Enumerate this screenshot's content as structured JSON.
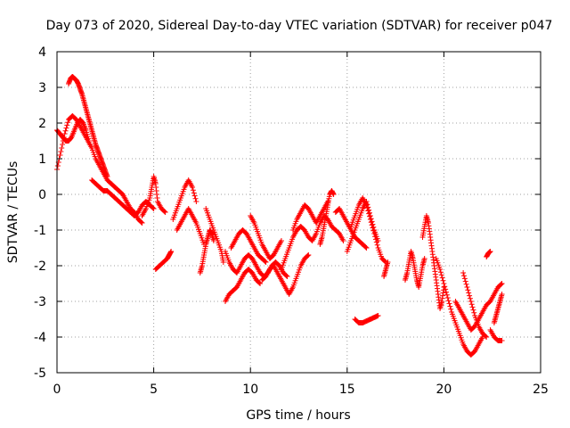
{
  "chart_data": {
    "type": "scatter",
    "title": "Day 073 of 2020, Sidereal Day-to-day VTEC variation (SDTVAR) for receiver p047",
    "xlabel": "GPS time / hours",
    "ylabel": "SDTVAR / TECUs",
    "xlim": [
      0,
      25
    ],
    "ylim": [
      -5,
      4
    ],
    "xticks": [
      0,
      5,
      10,
      15,
      20,
      25
    ],
    "yticks": [
      -5,
      -4,
      -3,
      -2,
      -1,
      0,
      1,
      2,
      3,
      4
    ],
    "xtick_labels": [
      "0",
      "5",
      "10",
      "15",
      "20",
      "25"
    ],
    "ytick_labels": [
      "-5",
      "-4",
      "-3",
      "-2",
      "-1",
      "0",
      "1",
      "2",
      "3",
      "4"
    ],
    "grid": true,
    "marker": "plus",
    "color": "#ff0000",
    "series": [
      {
        "name": "s1",
        "x": [
          0.0,
          0.2,
          0.4,
          0.6,
          0.8,
          1.0,
          1.2,
          1.4,
          1.6,
          1.8,
          2.0,
          2.2,
          2.4,
          2.6,
          2.8,
          3.0,
          3.2,
          3.4,
          3.6,
          3.8,
          4.0,
          4.2,
          4.4
        ],
        "y": [
          0.7,
          1.2,
          1.7,
          2.1,
          2.2,
          2.1,
          1.9,
          1.7,
          1.5,
          1.3,
          1.0,
          0.8,
          0.6,
          0.4,
          0.3,
          0.2,
          0.1,
          0.0,
          -0.2,
          -0.4,
          -0.5,
          -0.7,
          -0.8
        ]
      },
      {
        "name": "s2",
        "x": [
          0.0,
          0.15,
          0.3,
          0.45,
          0.6,
          0.75,
          0.9,
          1.05,
          1.2,
          1.35,
          1.5,
          1.65
        ],
        "y": [
          1.8,
          1.7,
          1.6,
          1.5,
          1.5,
          1.6,
          1.8,
          2.0,
          2.1,
          2.0,
          1.8,
          1.5
        ]
      },
      {
        "name": "s3",
        "x": [
          0.6,
          0.7,
          0.8,
          0.9,
          1.0,
          1.1,
          1.2,
          1.3,
          1.4,
          1.5,
          1.6,
          1.7,
          1.8,
          1.9,
          2.0,
          2.1,
          2.2,
          2.3,
          2.4,
          2.5,
          2.6
        ],
        "y": [
          3.1,
          3.25,
          3.3,
          3.25,
          3.2,
          3.1,
          2.95,
          2.8,
          2.6,
          2.4,
          2.2,
          2.0,
          1.8,
          1.6,
          1.4,
          1.25,
          1.1,
          0.95,
          0.8,
          0.65,
          0.5
        ]
      },
      {
        "name": "s4",
        "x": [
          1.8,
          2.0,
          2.2,
          2.4,
          2.6,
          2.8,
          3.0,
          3.2,
          3.4,
          3.6,
          3.8,
          4.0,
          4.2,
          4.4,
          4.6,
          4.8,
          5.0
        ],
        "y": [
          0.4,
          0.3,
          0.2,
          0.1,
          0.1,
          0.0,
          -0.1,
          -0.2,
          -0.3,
          -0.4,
          -0.5,
          -0.6,
          -0.5,
          -0.3,
          -0.2,
          -0.3,
          -0.4
        ]
      },
      {
        "name": "s5",
        "x": [
          4.4,
          4.6,
          4.8,
          4.9,
          5.0,
          5.1,
          5.2,
          5.4,
          5.6
        ],
        "y": [
          -0.6,
          -0.4,
          -0.1,
          0.2,
          0.5,
          0.3,
          -0.2,
          -0.4,
          -0.5
        ]
      },
      {
        "name": "s6",
        "x": [
          5.1,
          5.3,
          5.5,
          5.7,
          5.8,
          5.9
        ],
        "y": [
          -2.1,
          -2.0,
          -1.9,
          -1.8,
          -1.7,
          -1.6
        ]
      },
      {
        "name": "s7",
        "x": [
          6.0,
          6.2,
          6.4,
          6.6,
          6.8,
          7.0,
          7.2
        ],
        "y": [
          -0.7,
          -0.4,
          -0.1,
          0.2,
          0.4,
          0.2,
          -0.2
        ]
      },
      {
        "name": "s8",
        "x": [
          6.2,
          6.4,
          6.6,
          6.8,
          7.0,
          7.2,
          7.4,
          7.6
        ],
        "y": [
          -1.0,
          -0.8,
          -0.6,
          -0.4,
          -0.6,
          -0.8,
          -1.1,
          -1.4
        ]
      },
      {
        "name": "s9",
        "x": [
          7.4,
          7.5,
          7.6,
          7.7,
          7.8,
          7.9,
          8.0,
          8.1
        ],
        "y": [
          -2.2,
          -2.0,
          -1.7,
          -1.4,
          -1.2,
          -1.0,
          -1.1,
          -1.3
        ]
      },
      {
        "name": "s10",
        "x": [
          7.7,
          7.9,
          8.1,
          8.3,
          8.5,
          8.6
        ],
        "y": [
          -0.4,
          -0.7,
          -1.0,
          -1.3,
          -1.6,
          -1.9
        ]
      },
      {
        "name": "s11",
        "x": [
          8.7,
          8.9,
          9.1,
          9.3,
          9.5,
          9.7,
          9.9,
          10.1,
          10.3,
          10.5,
          10.7,
          10.9,
          11.1,
          11.3,
          11.5,
          11.7,
          11.9
        ],
        "y": [
          -1.6,
          -1.9,
          -2.1,
          -2.2,
          -2.0,
          -1.8,
          -1.7,
          -1.8,
          -2.0,
          -2.2,
          -2.3,
          -2.2,
          -2.0,
          -1.9,
          -2.0,
          -2.2,
          -2.3
        ]
      },
      {
        "name": "s12",
        "x": [
          8.7,
          8.9,
          9.1,
          9.3,
          9.5,
          9.7,
          9.9,
          10.1,
          10.3,
          10.5
        ],
        "y": [
          -3.0,
          -2.8,
          -2.7,
          -2.6,
          -2.4,
          -2.2,
          -2.1,
          -2.2,
          -2.4,
          -2.5
        ]
      },
      {
        "name": "s13",
        "x": [
          9.0,
          9.2,
          9.4,
          9.6,
          9.8,
          10.0,
          10.2,
          10.4,
          10.6,
          10.8
        ],
        "y": [
          -1.5,
          -1.3,
          -1.1,
          -1.0,
          -1.1,
          -1.3,
          -1.5,
          -1.7,
          -1.8,
          -1.9
        ]
      },
      {
        "name": "s14",
        "x": [
          10.0,
          10.2,
          10.4,
          10.6,
          10.8,
          11.0,
          11.2,
          11.4,
          11.6
        ],
        "y": [
          -0.6,
          -0.8,
          -1.1,
          -1.4,
          -1.6,
          -1.8,
          -1.7,
          -1.5,
          -1.3
        ]
      },
      {
        "name": "s15",
        "x": [
          10.6,
          10.8,
          11.0,
          11.2,
          11.4,
          11.6,
          11.8,
          12.0,
          12.2,
          12.4,
          12.6,
          12.8,
          13.0
        ],
        "y": [
          -2.4,
          -2.3,
          -2.1,
          -2.0,
          -2.2,
          -2.4,
          -2.6,
          -2.8,
          -2.6,
          -2.3,
          -2.0,
          -1.8,
          -1.7
        ]
      },
      {
        "name": "s16",
        "x": [
          11.6,
          11.8,
          12.0,
          12.2,
          12.4,
          12.6,
          12.8,
          13.0,
          13.2,
          13.4,
          13.6,
          13.8,
          14.0,
          14.2,
          14.4,
          14.6,
          14.8
        ],
        "y": [
          -2.1,
          -1.8,
          -1.5,
          -1.2,
          -1.0,
          -0.9,
          -1.0,
          -1.2,
          -1.3,
          -1.1,
          -0.8,
          -0.6,
          -0.7,
          -0.9,
          -1.0,
          -1.1,
          -1.3
        ]
      },
      {
        "name": "s17",
        "x": [
          12.2,
          12.4,
          12.6,
          12.8,
          13.0,
          13.2,
          13.4,
          13.6,
          13.8,
          14.0
        ],
        "y": [
          -1.0,
          -0.7,
          -0.5,
          -0.3,
          -0.4,
          -0.6,
          -0.8,
          -0.6,
          -0.4,
          -0.2
        ]
      },
      {
        "name": "s18",
        "x": [
          13.6,
          13.7,
          13.8,
          13.9,
          14.0,
          14.1,
          14.2,
          14.3
        ],
        "y": [
          -1.4,
          -1.2,
          -0.9,
          -0.6,
          -0.3,
          0.0,
          0.1,
          0.0
        ]
      },
      {
        "name": "s19",
        "x": [
          14.4,
          14.6,
          14.8,
          15.0,
          15.2,
          15.4,
          15.6,
          15.8,
          16.0
        ],
        "y": [
          -0.5,
          -0.4,
          -0.6,
          -0.8,
          -1.0,
          -1.2,
          -1.3,
          -1.4,
          -1.5
        ]
      },
      {
        "name": "s20",
        "x": [
          15.0,
          15.2,
          15.4,
          15.6,
          15.8,
          16.0,
          16.2,
          16.4,
          16.6
        ],
        "y": [
          -1.6,
          -1.3,
          -1.0,
          -0.7,
          -0.4,
          -0.2,
          -0.6,
          -1.0,
          -1.3
        ]
      },
      {
        "name": "s21",
        "x": [
          15.2,
          15.4,
          15.6,
          15.8,
          16.0,
          16.2,
          16.4,
          16.6,
          16.8,
          17.0
        ],
        "y": [
          -0.9,
          -0.6,
          -0.3,
          -0.1,
          -0.3,
          -0.7,
          -1.1,
          -1.5,
          -1.8,
          -1.9
        ]
      },
      {
        "name": "s22",
        "x": [
          15.4,
          15.6,
          15.8,
          16.0,
          16.2,
          16.4,
          16.6
        ],
        "y": [
          -3.5,
          -3.6,
          -3.6,
          -3.55,
          -3.5,
          -3.45,
          -3.4
        ]
      },
      {
        "name": "s23",
        "x": [
          16.9,
          17.0,
          17.1
        ],
        "y": [
          -2.3,
          -2.1,
          -1.9
        ]
      },
      {
        "name": "s24",
        "x": [
          18.0,
          18.1,
          18.2,
          18.3,
          18.4,
          18.5,
          18.6,
          18.7,
          18.8,
          18.9,
          19.0
        ],
        "y": [
          -2.4,
          -2.2,
          -1.9,
          -1.6,
          -1.8,
          -2.1,
          -2.4,
          -2.6,
          -2.3,
          -2.0,
          -1.8
        ]
      },
      {
        "name": "s25",
        "x": [
          18.9,
          19.0,
          19.1,
          19.2,
          19.3,
          19.4,
          19.5,
          19.6,
          19.7,
          19.8,
          19.9,
          20.0
        ],
        "y": [
          -1.2,
          -0.9,
          -0.6,
          -0.8,
          -1.2,
          -1.6,
          -2.0,
          -2.4,
          -2.8,
          -3.2,
          -3.0,
          -2.6
        ]
      },
      {
        "name": "s26",
        "x": [
          19.6,
          19.8,
          20.0,
          20.2,
          20.4,
          20.6,
          20.8,
          21.0,
          21.2,
          21.4,
          21.6,
          21.8,
          22.0
        ],
        "y": [
          -1.8,
          -2.1,
          -2.5,
          -2.9,
          -3.3,
          -3.6,
          -3.9,
          -4.2,
          -4.4,
          -4.5,
          -4.4,
          -4.2,
          -4.0
        ]
      },
      {
        "name": "s27",
        "x": [
          20.6,
          20.8,
          21.0,
          21.2,
          21.4,
          21.6,
          21.8,
          22.0,
          22.2,
          22.4,
          22.6,
          22.8,
          23.0
        ],
        "y": [
          -3.0,
          -3.2,
          -3.4,
          -3.6,
          -3.8,
          -3.7,
          -3.5,
          -3.3,
          -3.1,
          -3.0,
          -2.8,
          -2.6,
          -2.5
        ]
      },
      {
        "name": "s28",
        "x": [
          21.0,
          21.2,
          21.4,
          21.6,
          21.8,
          22.0,
          22.2
        ],
        "y": [
          -2.2,
          -2.6,
          -3.0,
          -3.4,
          -3.7,
          -3.9,
          -4.0
        ]
      },
      {
        "name": "s29",
        "x": [
          22.2,
          22.3,
          22.4
        ],
        "y": [
          -1.75,
          -1.65,
          -1.6
        ]
      },
      {
        "name": "s30",
        "x": [
          22.4,
          22.6,
          22.8,
          23.0
        ],
        "y": [
          -3.8,
          -4.0,
          -4.1,
          -4.1
        ]
      },
      {
        "name": "s31",
        "x": [
          22.6,
          22.7,
          22.8,
          22.9,
          23.0
        ],
        "y": [
          -3.6,
          -3.4,
          -3.2,
          -3.0,
          -2.8
        ]
      }
    ]
  }
}
